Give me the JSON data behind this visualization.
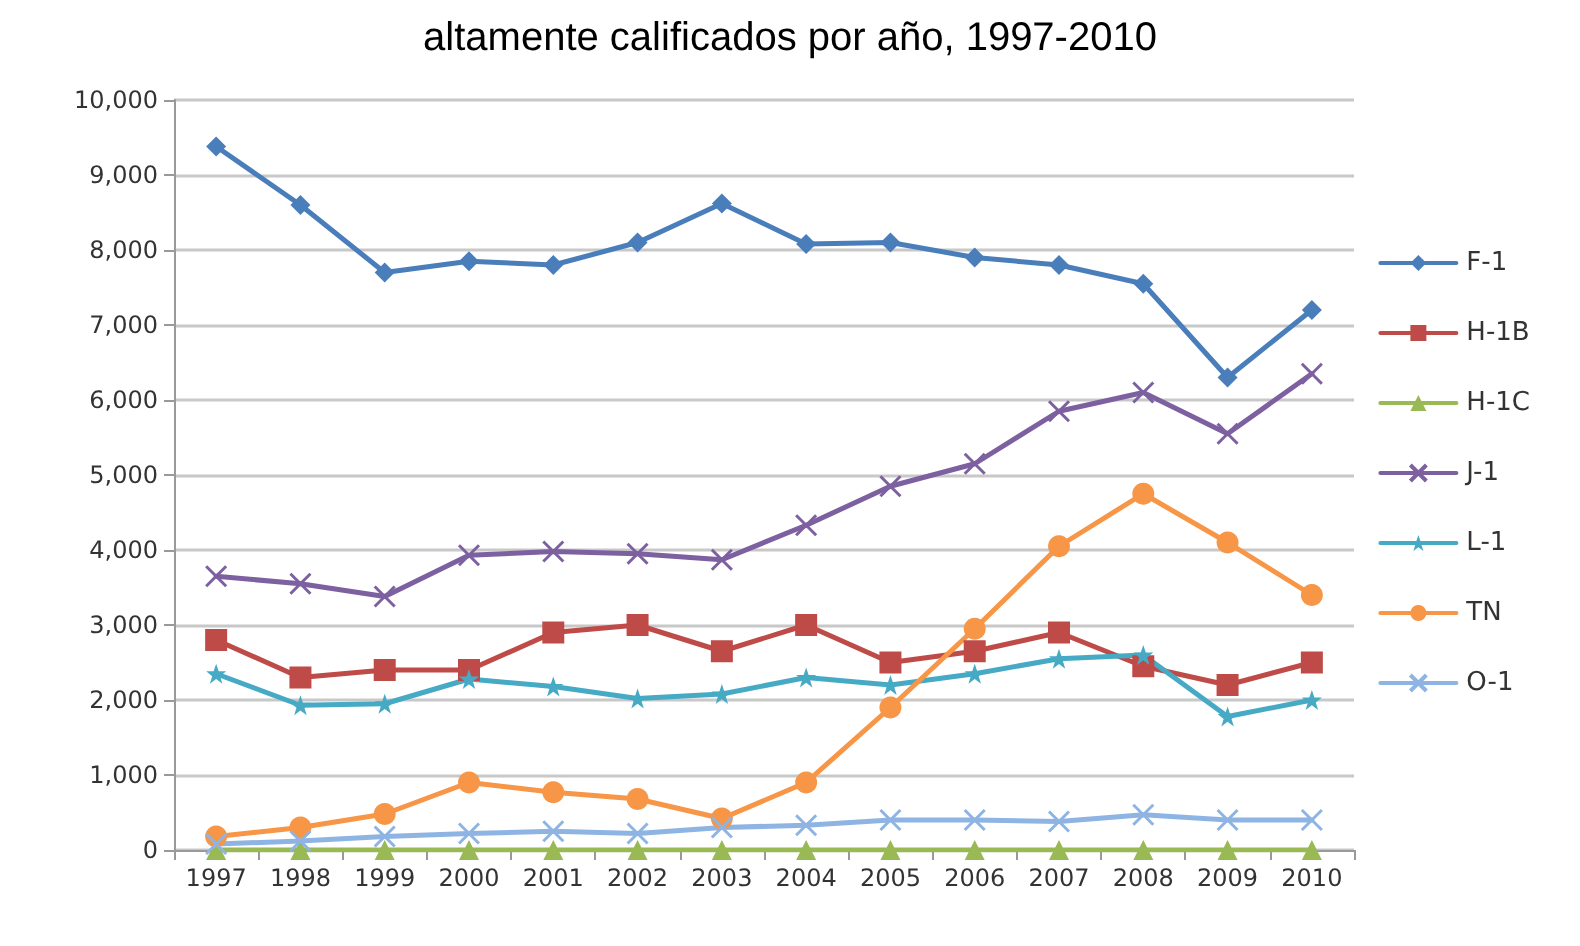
{
  "chart_data": {
    "type": "line",
    "title": "altamente calificados por año, 1997-2010",
    "categories": [
      "1997",
      "1998",
      "1999",
      "2000",
      "2001",
      "2002",
      "2003",
      "2004",
      "2005",
      "2006",
      "2007",
      "2008",
      "2009",
      "2010"
    ],
    "series": [
      {
        "name": "F-1",
        "color": "#4a7ebb",
        "marker": "diamond",
        "values": [
          9380,
          8600,
          7700,
          7850,
          7800,
          8100,
          8620,
          8080,
          8100,
          7900,
          7800,
          7550,
          6300,
          7200
        ]
      },
      {
        "name": "H-1B",
        "color": "#be4b48",
        "marker": "square",
        "values": [
          2800,
          2300,
          2400,
          2400,
          2900,
          3000,
          2650,
          3000,
          2500,
          2650,
          2900,
          2450,
          2200,
          2500
        ]
      },
      {
        "name": "H-1C",
        "color": "#98b954",
        "marker": "triangle",
        "values": [
          0,
          0,
          0,
          0,
          0,
          0,
          0,
          0,
          0,
          0,
          0,
          0,
          0,
          0
        ]
      },
      {
        "name": "J-1",
        "color": "#7d60a0",
        "marker": "cross",
        "values": [
          3650,
          3550,
          3380,
          3930,
          3980,
          3950,
          3870,
          4330,
          4850,
          5150,
          5850,
          6100,
          5550,
          6350
        ]
      },
      {
        "name": "L-1",
        "color": "#46aac5",
        "marker": "star",
        "values": [
          2350,
          1930,
          1950,
          2280,
          2180,
          2020,
          2080,
          2300,
          2200,
          2350,
          2550,
          2600,
          1780,
          2000
        ]
      },
      {
        "name": "TN",
        "color": "#f79646",
        "marker": "circle",
        "values": [
          180,
          300,
          480,
          900,
          770,
          680,
          420,
          900,
          1900,
          2950,
          4050,
          4750,
          4100,
          3400
        ]
      },
      {
        "name": "O-1",
        "color": "#8eb4e3",
        "marker": "cross",
        "values": [
          80,
          120,
          180,
          220,
          250,
          220,
          300,
          330,
          400,
          400,
          380,
          470,
          400,
          400
        ]
      }
    ],
    "ylim": [
      0,
      10000
    ],
    "yticks": [
      0,
      {
        "value": 1000,
        "label": "1,000"
      },
      {
        "value": 2000,
        "label": "2,000"
      },
      {
        "value": 3000,
        "label": "3,000"
      },
      {
        "value": 4000,
        "label": "4,000"
      },
      {
        "value": 5000,
        "label": "5,000"
      },
      {
        "value": 6000,
        "label": "6,000"
      },
      {
        "value": 7000,
        "label": "7,000"
      },
      {
        "value": 8000,
        "label": "8,000"
      },
      {
        "value": 9000,
        "label": "9,000"
      },
      {
        "value": 10000,
        "label": "10,000"
      }
    ],
    "grid": "y",
    "legend": "right"
  }
}
